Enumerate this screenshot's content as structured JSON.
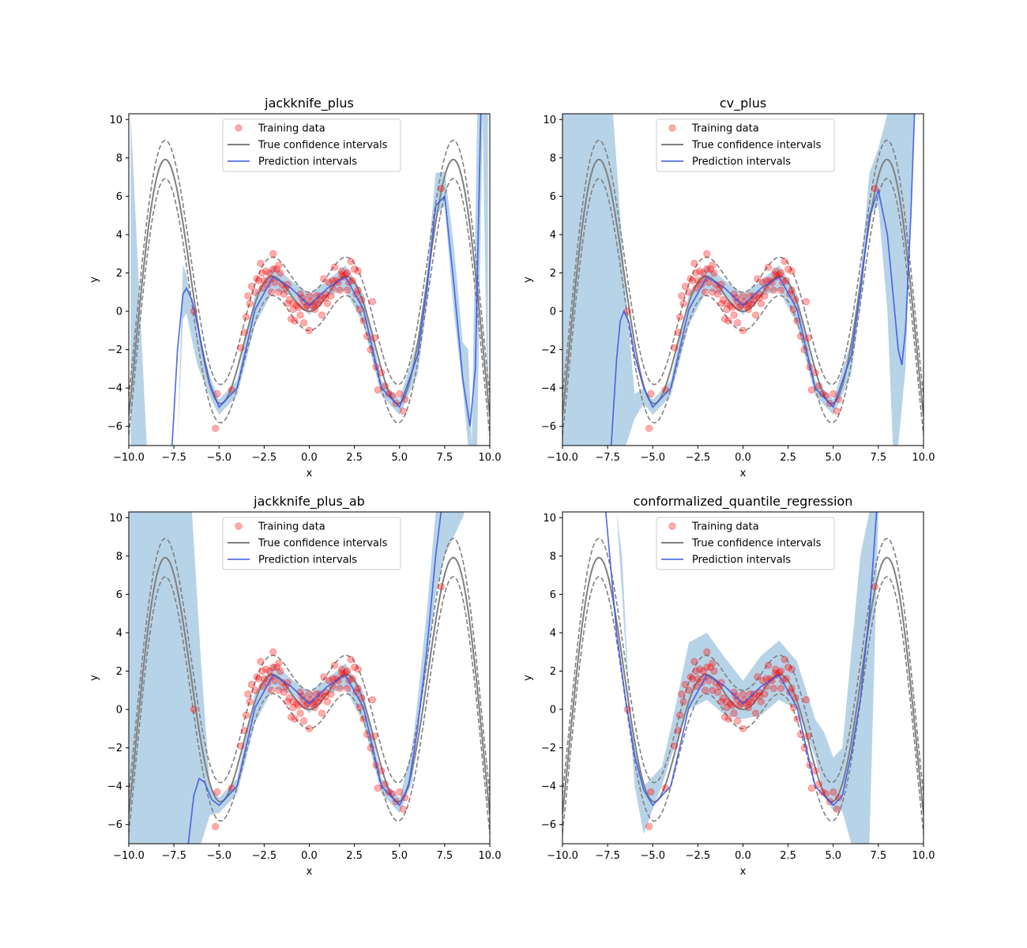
{
  "chart_data": [
    {
      "type": "line",
      "title": "jackknife_plus",
      "xlabel": "x",
      "ylabel": "y",
      "xlim": [
        -10,
        10
      ],
      "ylim": [
        -7,
        10.3
      ],
      "xticks": [
        -10,
        -7.5,
        -5,
        -2.5,
        0,
        2.5,
        5,
        7.5,
        10
      ],
      "xtick_labels": [
        "−10.0",
        "−7.5",
        "−5.0",
        "−2.5",
        "0.0",
        "2.5",
        "5.0",
        "7.5",
        "10.0"
      ],
      "yticks": [
        -6,
        -4,
        -2,
        0,
        2,
        4,
        6,
        8,
        10
      ],
      "ytick_labels": [
        "−6",
        "−4",
        "−2",
        "0",
        "2",
        "4",
        "6",
        "8",
        "10"
      ],
      "legend": {
        "position": "upper center",
        "entries": [
          "Training data",
          "True confidence intervals",
          "Prediction intervals"
        ]
      },
      "band": {
        "x": [
          -9.9,
          -9.0,
          -8.0,
          -7.3,
          -7.0,
          -6.8,
          -6.5,
          -6.2,
          -5.5,
          -5.0,
          -4.0,
          -3.0,
          -2.0,
          -1.0,
          0.0,
          1.0,
          2.0,
          3.0,
          4.0,
          5.0,
          6.0,
          6.5,
          7.0,
          7.5,
          8.0,
          8.5,
          8.8,
          9.0,
          9.3,
          9.6,
          9.9
        ],
        "lower": [
          -7.0,
          -7.0,
          -7.0,
          -7.0,
          -0.4,
          -0.1,
          -1.5,
          -2.8,
          -4.5,
          -5.4,
          -4.4,
          -0.7,
          1.1,
          0.8,
          -0.2,
          0.8,
          1.1,
          -0.7,
          -4.4,
          -5.4,
          -3.3,
          0.3,
          5.0,
          5.5,
          0.0,
          -4.0,
          -7.0,
          -7.0,
          -7.0,
          10.3,
          -7.0
        ],
        "upper": [
          10.3,
          -7.0,
          -7.0,
          -7.0,
          2.4,
          1.9,
          0.5,
          -1.0,
          -3.4,
          -4.6,
          -3.6,
          0.9,
          2.4,
          1.6,
          0.9,
          1.6,
          2.4,
          0.9,
          -3.6,
          -4.6,
          -1.5,
          1.8,
          7.2,
          7.3,
          3.5,
          -1.6,
          -2.0,
          -7.0,
          10.3,
          10.3,
          10.3
        ]
      },
      "pred": {
        "x": [
          -7.6,
          -7.3,
          -7.0,
          -6.8,
          -6.5,
          -6.0,
          -5.5,
          -5.0,
          -4.0,
          -3.0,
          -2.0,
          -1.0,
          0.0,
          1.0,
          2.0,
          3.0,
          4.0,
          5.0,
          6.0,
          6.5,
          7.0,
          7.5,
          8.0,
          8.5,
          8.9,
          9.2,
          9.5
        ],
        "y": [
          -7.0,
          -2.0,
          0.9,
          1.2,
          0.6,
          -1.6,
          -3.8,
          -5.0,
          -4.0,
          0.1,
          1.8,
          1.2,
          0.3,
          1.2,
          1.8,
          0.1,
          -4.0,
          -5.0,
          -2.3,
          1.0,
          5.5,
          6.0,
          1.5,
          -3.5,
          -6.0,
          -3.0,
          10.3
        ]
      }
    },
    {
      "type": "line",
      "title": "cv_plus",
      "xlabel": "x",
      "ylabel": "y",
      "xlim": [
        -10,
        10
      ],
      "ylim": [
        -7,
        10.3
      ],
      "xticks": [
        -10,
        -7.5,
        -5,
        -2.5,
        0,
        2.5,
        5,
        7.5,
        10
      ],
      "xtick_labels": [
        "−10.0",
        "−7.5",
        "−5.0",
        "−2.5",
        "0.0",
        "2.5",
        "5.0",
        "7.5",
        "10.0"
      ],
      "yticks": [
        -6,
        -4,
        -2,
        0,
        2,
        4,
        6,
        8,
        10
      ],
      "ytick_labels": [
        "−6",
        "−4",
        "−2",
        "0",
        "2",
        "4",
        "6",
        "8",
        "10"
      ],
      "legend": {
        "position": "upper center",
        "entries": [
          "Training data",
          "True confidence intervals",
          "Prediction intervals"
        ]
      },
      "band": {
        "x": [
          -10.0,
          -9.0,
          -8.0,
          -7.2,
          -6.5,
          -6.0,
          -5.5,
          -5.0,
          -4.0,
          -3.0,
          -2.0,
          -1.0,
          0.0,
          1.0,
          2.0,
          3.0,
          4.0,
          5.0,
          6.0,
          6.5,
          7.0,
          7.5,
          8.0,
          8.3,
          8.6,
          9.0,
          9.5,
          10.0
        ],
        "lower": [
          -7.0,
          -7.0,
          -7.0,
          -7.0,
          -7.0,
          -5.6,
          -4.8,
          -5.4,
          -4.4,
          -0.7,
          1.1,
          0.8,
          -0.2,
          0.8,
          1.1,
          -0.7,
          -4.4,
          -5.4,
          -3.3,
          0.3,
          5.0,
          5.5,
          0.0,
          -7.0,
          -7.0,
          -3.0,
          10.3,
          10.3
        ],
        "upper": [
          10.3,
          10.3,
          10.3,
          10.3,
          1.0,
          -4.3,
          -4.0,
          -4.6,
          -3.6,
          0.9,
          2.4,
          1.6,
          0.9,
          1.6,
          2.4,
          0.9,
          -3.6,
          -4.6,
          -1.5,
          1.8,
          7.2,
          8.5,
          10.3,
          10.3,
          10.3,
          10.3,
          10.3,
          10.3
        ]
      },
      "pred": {
        "x": [
          -7.3,
          -7.0,
          -6.8,
          -6.6,
          -6.3,
          -6.0,
          -5.5,
          -5.0,
          -4.0,
          -3.0,
          -2.0,
          -1.0,
          0.0,
          1.0,
          2.0,
          3.0,
          4.0,
          5.0,
          6.0,
          6.5,
          7.0,
          7.5,
          8.0,
          8.3,
          8.6,
          8.8,
          9.0,
          9.3,
          9.5
        ],
        "y": [
          -7.0,
          -2.5,
          -0.5,
          0.0,
          -0.6,
          -2.3,
          -4.0,
          -5.0,
          -4.0,
          0.1,
          1.8,
          1.2,
          0.3,
          1.2,
          1.8,
          0.1,
          -4.0,
          -5.0,
          -2.3,
          1.0,
          5.0,
          6.3,
          4.0,
          1.0,
          -2.0,
          -2.8,
          -1.0,
          5.0,
          10.3
        ]
      }
    },
    {
      "type": "line",
      "title": "jackknife_plus_ab",
      "xlabel": "x",
      "ylabel": "y",
      "xlim": [
        -10,
        10
      ],
      "ylim": [
        -7,
        10.3
      ],
      "xticks": [
        -10,
        -7.5,
        -5,
        -2.5,
        0,
        2.5,
        5,
        7.5,
        10
      ],
      "xtick_labels": [
        "−10.0",
        "−7.5",
        "−5.0",
        "−2.5",
        "0.0",
        "2.5",
        "5.0",
        "7.5",
        "10.0"
      ],
      "yticks": [
        -6,
        -4,
        -2,
        0,
        2,
        4,
        6,
        8,
        10
      ],
      "ytick_labels": [
        "−6",
        "−4",
        "−2",
        "0",
        "2",
        "4",
        "6",
        "8",
        "10"
      ],
      "legend": {
        "position": "upper center",
        "entries": [
          "Training data",
          "True confidence intervals",
          "Prediction intervals"
        ]
      },
      "band": {
        "x": [
          -10.0,
          -9.0,
          -8.0,
          -7.0,
          -6.5,
          -6.0,
          -5.5,
          -5.0,
          -4.0,
          -3.0,
          -2.0,
          -1.0,
          0.0,
          1.0,
          2.0,
          3.0,
          4.0,
          5.0,
          5.7,
          6.0,
          6.5,
          7.0,
          7.5,
          8.0,
          8.5,
          8.6
        ],
        "lower": [
          -7.0,
          -7.0,
          -7.0,
          -7.0,
          -7.0,
          -7.0,
          -5.5,
          -5.4,
          -4.4,
          -0.7,
          1.1,
          0.8,
          -0.2,
          0.8,
          1.1,
          -0.7,
          -4.4,
          -5.4,
          -3.8,
          -1.0,
          2.0,
          6.0,
          8.0,
          9.0,
          10.0,
          10.3
        ],
        "upper": [
          10.3,
          10.3,
          10.3,
          10.3,
          10.3,
          2.5,
          -4.0,
          -4.6,
          -3.6,
          0.9,
          2.4,
          1.6,
          0.9,
          1.6,
          2.4,
          0.9,
          -3.6,
          -4.6,
          -2.0,
          0.5,
          5.0,
          10.3,
          10.3,
          10.3,
          10.3,
          10.3
        ]
      },
      "pred": {
        "x": [
          -6.7,
          -6.4,
          -6.1,
          -5.8,
          -5.4,
          -5.0,
          -4.0,
          -3.0,
          -2.0,
          -1.0,
          0.0,
          1.0,
          2.0,
          3.0,
          4.0,
          5.0,
          5.5,
          6.0,
          6.5,
          7.0,
          7.3
        ],
        "y": [
          -7.0,
          -4.5,
          -3.6,
          -3.8,
          -4.7,
          -5.0,
          -4.0,
          0.1,
          1.8,
          1.2,
          0.3,
          1.2,
          1.8,
          0.1,
          -4.0,
          -5.0,
          -4.0,
          -1.0,
          3.0,
          8.0,
          10.3
        ]
      }
    },
    {
      "type": "line",
      "title": "conformalized_quantile_regression",
      "xlabel": "x",
      "ylabel": "y",
      "xlim": [
        -10,
        10
      ],
      "ylim": [
        -7,
        10.3
      ],
      "xticks": [
        -10,
        -7.5,
        -5,
        -2.5,
        0,
        2.5,
        5,
        7.5,
        10
      ],
      "xtick_labels": [
        "−10.0",
        "−7.5",
        "−5.0",
        "−2.5",
        "0.0",
        "2.5",
        "5.0",
        "7.5",
        "10.0"
      ],
      "yticks": [
        -6,
        -4,
        -2,
        0,
        2,
        4,
        6,
        8,
        10
      ],
      "ytick_labels": [
        "−6",
        "−4",
        "−2",
        "0",
        "2",
        "4",
        "6",
        "8",
        "10"
      ],
      "legend": {
        "position": "upper center",
        "entries": [
          "Training data",
          "True confidence intervals",
          "Prediction intervals"
        ]
      },
      "band": {
        "x": [
          -7.0,
          -6.7,
          -6.3,
          -6.0,
          -5.5,
          -5.0,
          -4.5,
          -4.0,
          -3.0,
          -2.0,
          -1.0,
          0.0,
          1.0,
          2.0,
          3.0,
          4.0,
          4.5,
          5.0,
          5.5,
          6.0,
          6.5,
          7.0,
          7.5
        ],
        "lower": [
          10.3,
          6.0,
          0.0,
          -4.0,
          -6.5,
          -5.2,
          -4.0,
          -2.5,
          0.0,
          0.5,
          -0.3,
          -0.5,
          -0.3,
          0.5,
          0.0,
          -2.5,
          -4.5,
          -5.3,
          -5.3,
          -7.0,
          -7.0,
          -7.0,
          10.3
        ],
        "upper": [
          10.3,
          8.0,
          0.5,
          -2.0,
          -4.0,
          -3.5,
          -3.0,
          -1.0,
          3.5,
          4.0,
          2.7,
          1.5,
          2.8,
          3.6,
          2.5,
          -0.5,
          -1.2,
          -2.5,
          -2.0,
          3.0,
          8.0,
          10.3,
          10.3
        ]
      },
      "pred": {
        "x": [
          -7.6,
          -7.0,
          -6.5,
          -6.0,
          -5.5,
          -5.0,
          -4.0,
          -3.0,
          -2.0,
          -1.0,
          0.0,
          1.0,
          2.0,
          3.0,
          4.0,
          5.0,
          5.5,
          6.0,
          6.5,
          7.0,
          7.4
        ],
        "y": [
          10.3,
          4.0,
          0.5,
          -2.4,
          -4.2,
          -5.0,
          -4.0,
          0.1,
          1.8,
          1.2,
          0.3,
          1.2,
          1.8,
          0.1,
          -4.0,
          -5.0,
          -4.5,
          -2.3,
          0.5,
          5.0,
          10.3
        ]
      }
    }
  ],
  "shared": {
    "true_curve": {
      "x_range": [
        -10,
        10
      ],
      "width": 1.0,
      "formula": "x*sin(x)"
    },
    "training_data": {
      "x": [
        -5.2,
        -5.1,
        -4.3,
        -6.4,
        -3.8,
        -3.6,
        -3.5,
        -3.3,
        -3.2,
        -3.0,
        -2.9,
        -2.8,
        -2.7,
        -2.6,
        -2.5,
        -2.4,
        -2.3,
        -2.2,
        -2.1,
        -2.0,
        -2.0,
        -1.9,
        -1.8,
        -1.7,
        -1.6,
        -1.5,
        -1.4,
        -1.3,
        -1.2,
        -1.1,
        -1.0,
        -0.9,
        -0.8,
        -0.7,
        -0.6,
        -0.5,
        -0.4,
        -0.3,
        -0.2,
        -0.1,
        0.0,
        0.1,
        0.2,
        0.3,
        0.4,
        0.5,
        0.6,
        0.7,
        0.8,
        0.9,
        1.0,
        1.1,
        1.2,
        1.3,
        1.4,
        1.5,
        1.6,
        1.7,
        1.8,
        1.9,
        2.0,
        2.1,
        2.2,
        2.3,
        2.4,
        2.5,
        2.6,
        2.7,
        2.8,
        2.9,
        3.0,
        3.2,
        3.4,
        3.6,
        3.7,
        3.8,
        4.0,
        4.2,
        4.4,
        4.6,
        4.8,
        5.0,
        5.2,
        5.3,
        7.3,
        -2.1,
        2.1,
        0.0,
        -0.5,
        0.6,
        -1.2,
        1.3,
        -2.6,
        2.7,
        -3.4,
        3.5,
        -0.9,
        0.9,
        -1.7,
        1.8,
        0.3,
        -0.3
      ],
      "y": [
        -6.1,
        -4.3,
        -4.1,
        0.0,
        -1.9,
        -1.1,
        -0.3,
        0.4,
        1.3,
        1.0,
        1.7,
        1.6,
        2.5,
        1.2,
        1.6,
        2.1,
        1.4,
        2.0,
        1.7,
        3.0,
        2.2,
        1.5,
        2.2,
        1.0,
        2.0,
        1.4,
        0.9,
        1.2,
        0.4,
        0.6,
        -0.4,
        0.1,
        -0.5,
        0.3,
        0.2,
        -0.2,
        0.7,
        -0.6,
        0.2,
        0.3,
        -1.0,
        0.5,
        0.3,
        0.1,
        0.8,
        0.4,
        0.6,
        -0.2,
        1.7,
        0.9,
        0.4,
        1.5,
        0.8,
        1.2,
        2.3,
        1.6,
        1.5,
        1.1,
        2.1,
        1.8,
        1.9,
        2.0,
        1.5,
        2.6,
        1.6,
        2.2,
        0.9,
        1.1,
        0.1,
        0.6,
        -0.5,
        -1.3,
        -2.0,
        -1.4,
        -2.9,
        -4.1,
        -3.2,
        -3.9,
        -4.3,
        -4.4,
        -4.8,
        -4.3,
        -5.2,
        -4.6,
        6.4,
        1.0,
        1.1,
        0.8,
        0.9,
        0.8,
        1.4,
        1.6,
        2.0,
        2.1,
        0.8,
        0.5,
        0.4,
        0.7,
        2.4,
        1.9,
        0.4,
        0.5
      ]
    }
  },
  "colors": {
    "band": "#1f77b4",
    "prediction": "#3a55e6",
    "true_curve": "#808080",
    "training": "#ff0000",
    "axis": "#000000"
  }
}
